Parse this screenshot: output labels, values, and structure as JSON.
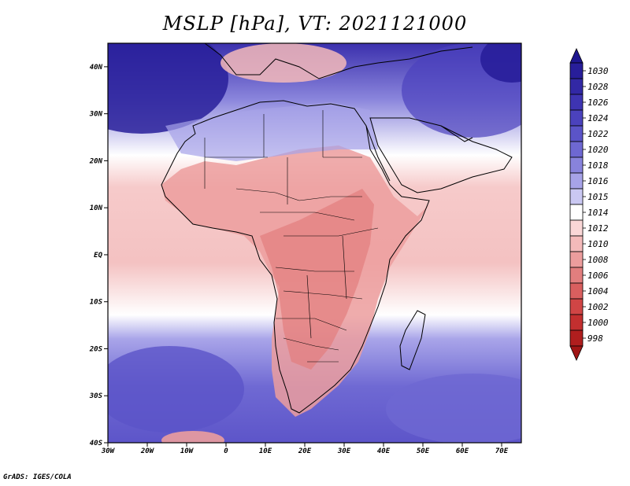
{
  "title": "MSLP [hPa], VT: 2021121000",
  "credit": "GrADS: IGES/COLA",
  "map": {
    "projection": "latlon",
    "lon_range": [
      -30,
      75
    ],
    "lat_range": [
      -40,
      45
    ],
    "lon_ticks": [
      {
        "value": -30,
        "label": "30W"
      },
      {
        "value": -20,
        "label": "20W"
      },
      {
        "value": -10,
        "label": "10W"
      },
      {
        "value": 0,
        "label": "0"
      },
      {
        "value": 10,
        "label": "10E"
      },
      {
        "value": 20,
        "label": "20E"
      },
      {
        "value": 30,
        "label": "30E"
      },
      {
        "value": 40,
        "label": "40E"
      },
      {
        "value": 50,
        "label": "50E"
      },
      {
        "value": 60,
        "label": "60E"
      },
      {
        "value": 70,
        "label": "70E"
      }
    ],
    "lat_ticks": [
      {
        "value": 40,
        "label": "40N"
      },
      {
        "value": 30,
        "label": "30N"
      },
      {
        "value": 20,
        "label": "20N"
      },
      {
        "value": 10,
        "label": "10N"
      },
      {
        "value": 0,
        "label": "EQ"
      },
      {
        "value": -10,
        "label": "10S"
      },
      {
        "value": -20,
        "label": "20S"
      },
      {
        "value": -30,
        "label": "30S"
      },
      {
        "value": -40,
        "label": "40S"
      }
    ]
  },
  "colorbar": {
    "levels": [
      {
        "label": "1030",
        "color": "#281e9a"
      },
      {
        "label": "1028",
        "color": "#3228a5"
      },
      {
        "label": "1026",
        "color": "#3e34b2"
      },
      {
        "label": "1024",
        "color": "#4b42bd"
      },
      {
        "label": "1022",
        "color": "#5b54c8"
      },
      {
        "label": "1020",
        "color": "#6e68d2"
      },
      {
        "label": "1018",
        "color": "#8883dc"
      },
      {
        "label": "1016",
        "color": "#a7a3e8"
      },
      {
        "label": "1015",
        "color": "#cac8f2"
      },
      {
        "label": "1014",
        "color": "#ffffff"
      },
      {
        "label": "1012",
        "color": "#fad7d7"
      },
      {
        "label": "1010",
        "color": "#f4baba"
      },
      {
        "label": "1008",
        "color": "#ec9d9d"
      },
      {
        "label": "1006",
        "color": "#e27e7e"
      },
      {
        "label": "1004",
        "color": "#d95f5f"
      },
      {
        "label": "1002",
        "color": "#d04545"
      },
      {
        "label": "1000",
        "color": "#c32f2f"
      },
      {
        "label": "998",
        "color": "#b01e1e"
      }
    ],
    "top_triangle_color": "#1e1690",
    "bottom_triangle_color": "#a01515"
  }
}
